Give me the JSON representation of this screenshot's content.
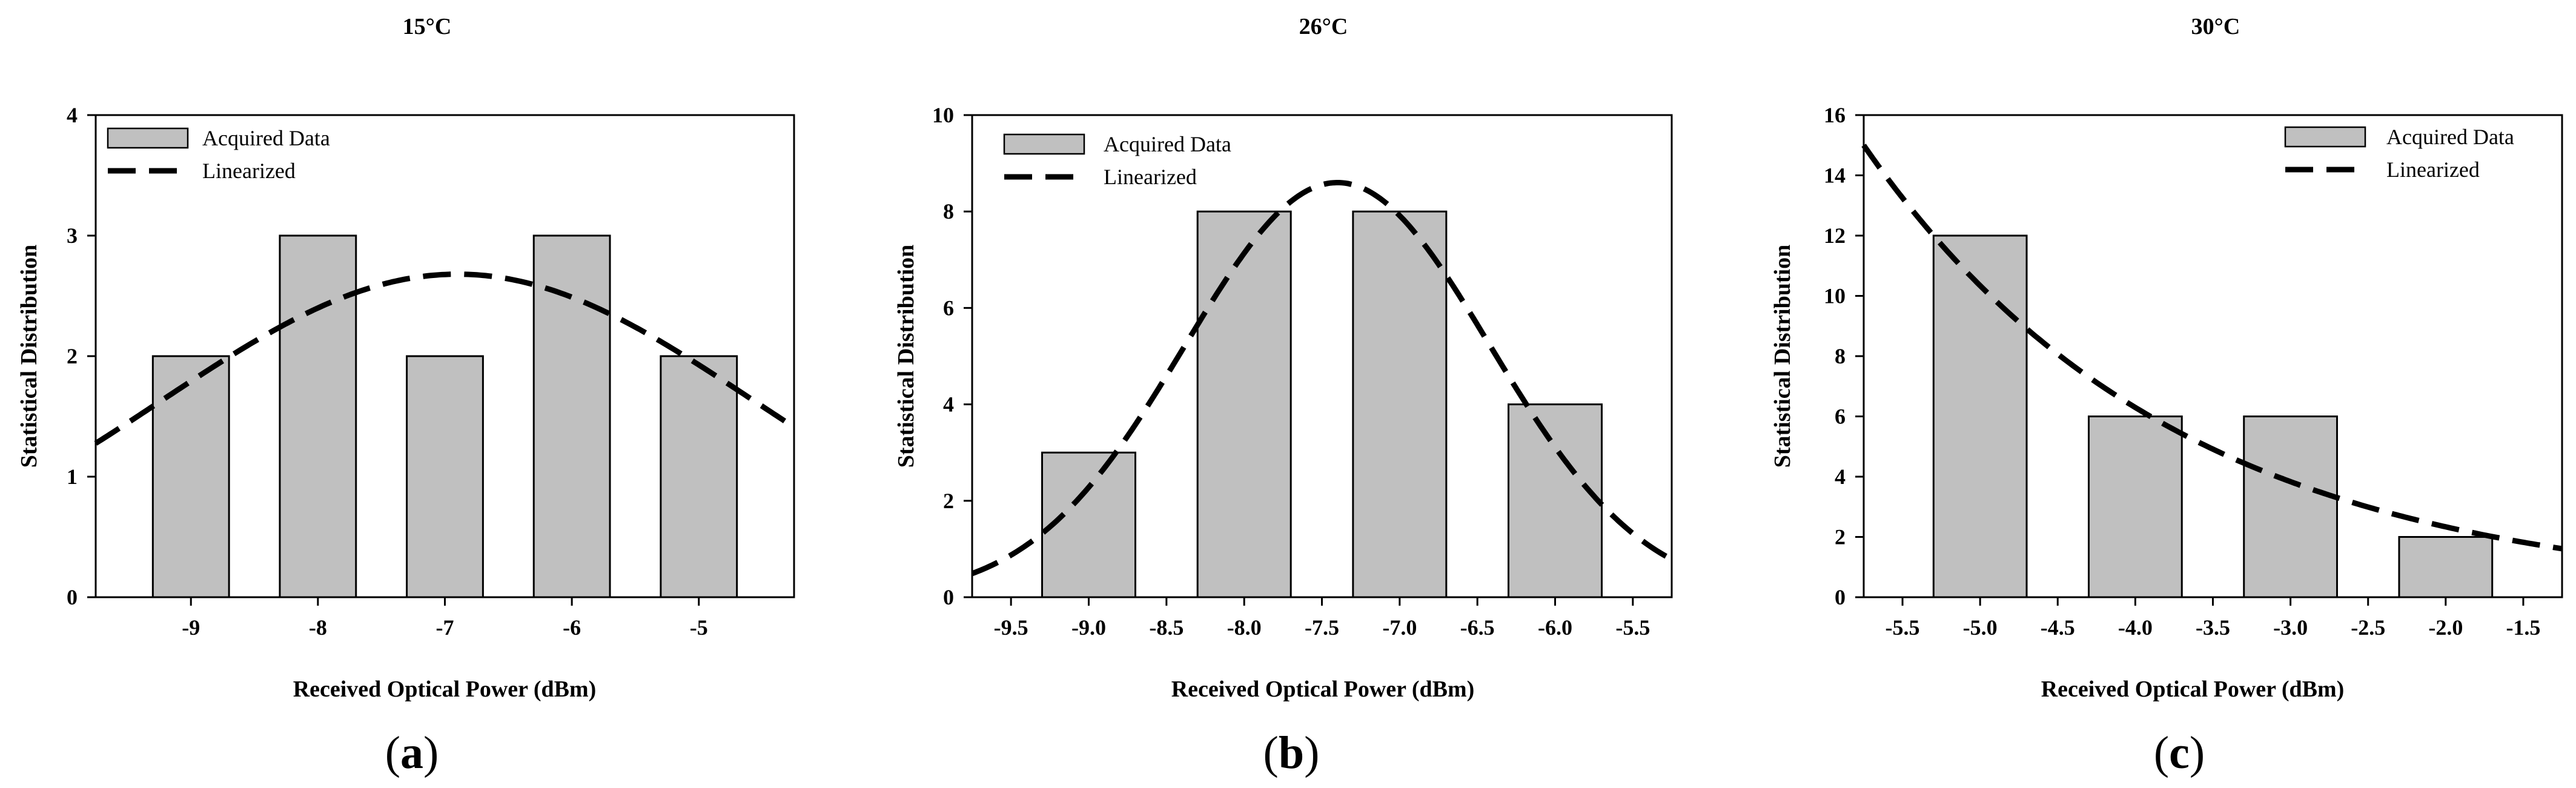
{
  "chart_data": [
    {
      "type": "bar",
      "title": "15°C",
      "panel_letter": "a",
      "xlabel": "Received Optical Power (dBm)",
      "ylabel": "Statistical Distribution",
      "xlim": [
        -9.75,
        -4.25
      ],
      "ylim": [
        0,
        4
      ],
      "xticks": [
        -9,
        -8,
        -7,
        -6,
        -5
      ],
      "xtick_labels": [
        "-9",
        "-8",
        "-7",
        "-6",
        "-5"
      ],
      "yticks": [
        0,
        1,
        2,
        3,
        4
      ],
      "ytick_labels": [
        "0",
        "1",
        "2",
        "3",
        "4"
      ],
      "bar_width": 0.6,
      "bars": [
        {
          "x": -9,
          "value": 2
        },
        {
          "x": -8,
          "value": 3
        },
        {
          "x": -7,
          "value": 2
        },
        {
          "x": -6,
          "value": 3
        },
        {
          "x": -5,
          "value": 2
        }
      ],
      "fit_curve": {
        "type": "gaussian",
        "amplitude": 2.68,
        "mean": -6.9,
        "sigma": 2.34
      },
      "legend": {
        "position": "top-left",
        "bar_label": "Acquired Data",
        "line_label": "Linearized"
      },
      "colors": {
        "bar_fill": "#c0c0c0",
        "bar_stroke": "#000000",
        "line": "#000000"
      }
    },
    {
      "type": "bar",
      "title": "26°C",
      "panel_letter": "b",
      "xlabel": "Received Optical Power (dBm)",
      "ylabel": "Statistical Distribution",
      "xlim": [
        -9.75,
        -5.25
      ],
      "ylim": [
        0,
        10
      ],
      "xticks": [
        -9.5,
        -9.0,
        -8.5,
        -8.0,
        -7.5,
        -7.0,
        -6.5,
        -6.0,
        -5.5
      ],
      "xtick_labels": [
        "-9.5",
        "-9.0",
        "-8.5",
        "-8.0",
        "-7.5",
        "-7.0",
        "-6.5",
        "-6.0",
        "-5.5"
      ],
      "yticks": [
        0,
        2,
        4,
        6,
        8,
        10
      ],
      "ytick_labels": [
        "0",
        "2",
        "4",
        "6",
        "8",
        "10"
      ],
      "bar_width": 0.6,
      "bars": [
        {
          "x": -9.0,
          "value": 3
        },
        {
          "x": -8.0,
          "value": 8
        },
        {
          "x": -7.0,
          "value": 8
        },
        {
          "x": -6.0,
          "value": 4
        }
      ],
      "fit_curve": {
        "type": "gaussian",
        "amplitude": 8.6,
        "mean": -7.4,
        "sigma": 0.982
      },
      "legend": {
        "position": "top-left",
        "bar_label": "Acquired Data",
        "line_label": "Linearized"
      },
      "colors": {
        "bar_fill": "#c0c0c0",
        "bar_stroke": "#000000",
        "line": "#000000"
      }
    },
    {
      "type": "bar",
      "title": "30°C",
      "panel_letter": "c",
      "xlabel": "Received Optical Power (dBm)",
      "ylabel": "Statistical Distribution",
      "xlim": [
        -5.75,
        -1.25
      ],
      "ylim": [
        0,
        16
      ],
      "xticks": [
        -5.5,
        -5.0,
        -4.5,
        -4.0,
        -3.5,
        -3.0,
        -2.5,
        -2.0,
        -1.5
      ],
      "xtick_labels": [
        "-5.5",
        "-5.0",
        "-4.5",
        "-4.0",
        "-3.5",
        "-3.0",
        "-2.5",
        "-2.0",
        "-1.5"
      ],
      "yticks": [
        0,
        2,
        4,
        6,
        8,
        10,
        12,
        14,
        16
      ],
      "ytick_labels": [
        "0",
        "2",
        "4",
        "6",
        "8",
        "10",
        "12",
        "14",
        "16"
      ],
      "bar_width": 0.6,
      "bars": [
        {
          "x": -5.0,
          "value": 12
        },
        {
          "x": -4.0,
          "value": 6
        },
        {
          "x": -3.0,
          "value": 6
        },
        {
          "x": -2.0,
          "value": 2
        }
      ],
      "fit_curve": {
        "type": "exponential",
        "a": 15.0,
        "x0": -5.75,
        "k": 0.496
      },
      "legend": {
        "position": "top-right",
        "bar_label": "Acquired Data",
        "line_label": "Linearized"
      },
      "colors": {
        "bar_fill": "#c0c0c0",
        "bar_stroke": "#000000",
        "line": "#000000"
      }
    }
  ]
}
